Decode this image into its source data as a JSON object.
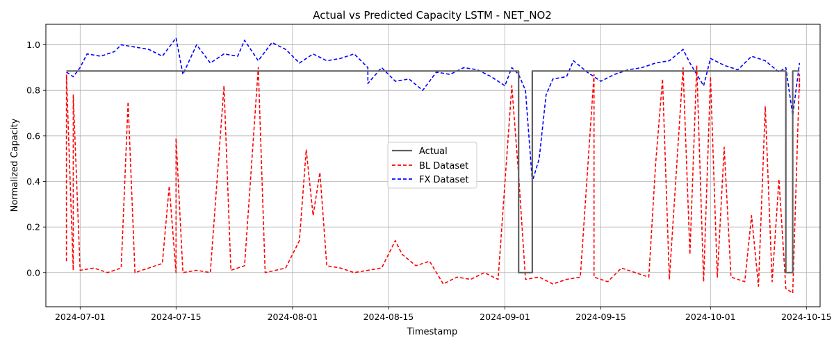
{
  "chart_data": {
    "type": "line",
    "title": "Actual vs Predicted Capacity LSTM - NET_NO2",
    "xlabel": "Timestamp",
    "ylabel": "Normalized Capacity",
    "xlim": [
      "2024-06-26",
      "2024-10-17"
    ],
    "ylim": [
      -0.15,
      1.09
    ],
    "x_ticks": [
      "2024-07-01",
      "2024-07-15",
      "2024-08-01",
      "2024-08-15",
      "2024-09-01",
      "2024-09-15",
      "2024-10-01",
      "2024-10-15"
    ],
    "y_ticks": [
      "0.0",
      "0.2",
      "0.4",
      "0.6",
      "0.8",
      "1.0"
    ],
    "grid": true,
    "legend_position": "center",
    "series": [
      {
        "name": "Actual",
        "color": "#606060",
        "style": "solid",
        "points": [
          [
            "2024-06-29",
            0.885
          ],
          [
            "2024-09-03",
            0.885
          ],
          [
            "2024-09-03",
            0.0
          ],
          [
            "2024-09-05",
            0.0
          ],
          [
            "2024-09-05",
            0.885
          ],
          [
            "2024-10-12",
            0.885
          ],
          [
            "2024-10-12",
            0.0
          ],
          [
            "2024-10-13",
            0.0
          ],
          [
            "2024-10-13",
            0.885
          ],
          [
            "2024-10-14",
            0.885
          ]
        ]
      },
      {
        "name": "BL Dataset",
        "color": "#ff0000",
        "style": "dashed",
        "points": [
          [
            "2024-06-29",
            0.05
          ],
          [
            "2024-06-29",
            0.87
          ],
          [
            "2024-06-30",
            0.01
          ],
          [
            "2024-06-30",
            0.78
          ],
          [
            "2024-07-01",
            0.01
          ],
          [
            "2024-07-03",
            0.02
          ],
          [
            "2024-07-05",
            0.0
          ],
          [
            "2024-07-07",
            0.02
          ],
          [
            "2024-07-08",
            0.75
          ],
          [
            "2024-07-09",
            0.0
          ],
          [
            "2024-07-11",
            0.02
          ],
          [
            "2024-07-13",
            0.04
          ],
          [
            "2024-07-14",
            0.38
          ],
          [
            "2024-07-15",
            0.0
          ],
          [
            "2024-07-15",
            0.59
          ],
          [
            "2024-07-16",
            0.0
          ],
          [
            "2024-07-18",
            0.01
          ],
          [
            "2024-07-20",
            0.0
          ],
          [
            "2024-07-22",
            0.82
          ],
          [
            "2024-07-23",
            0.01
          ],
          [
            "2024-07-25",
            0.03
          ],
          [
            "2024-07-27",
            0.9
          ],
          [
            "2024-07-28",
            0.0
          ],
          [
            "2024-07-31",
            0.02
          ],
          [
            "2024-08-02",
            0.14
          ],
          [
            "2024-08-03",
            0.54
          ],
          [
            "2024-08-04",
            0.25
          ],
          [
            "2024-08-05",
            0.44
          ],
          [
            "2024-08-06",
            0.03
          ],
          [
            "2024-08-08",
            0.02
          ],
          [
            "2024-08-10",
            0.0
          ],
          [
            "2024-08-12",
            0.01
          ],
          [
            "2024-08-14",
            0.02
          ],
          [
            "2024-08-16",
            0.14
          ],
          [
            "2024-08-17",
            0.08
          ],
          [
            "2024-08-19",
            0.03
          ],
          [
            "2024-08-21",
            0.05
          ],
          [
            "2024-08-23",
            -0.05
          ],
          [
            "2024-08-25",
            -0.02
          ],
          [
            "2024-08-27",
            -0.03
          ],
          [
            "2024-08-29",
            0.0
          ],
          [
            "2024-08-31",
            -0.03
          ],
          [
            "2024-09-02",
            0.82
          ],
          [
            "2024-09-03",
            0.43
          ],
          [
            "2024-09-04",
            -0.03
          ],
          [
            "2024-09-06",
            -0.02
          ],
          [
            "2024-09-08",
            -0.05
          ],
          [
            "2024-09-10",
            -0.03
          ],
          [
            "2024-09-12",
            -0.02
          ],
          [
            "2024-09-14",
            0.87
          ],
          [
            "2024-09-14",
            -0.02
          ],
          [
            "2024-09-16",
            -0.04
          ],
          [
            "2024-09-18",
            0.02
          ],
          [
            "2024-09-20",
            0.0
          ],
          [
            "2024-09-22",
            -0.02
          ],
          [
            "2024-09-23",
            0.48
          ],
          [
            "2024-09-24",
            0.85
          ],
          [
            "2024-09-25",
            -0.03
          ],
          [
            "2024-09-27",
            0.9
          ],
          [
            "2024-09-28",
            0.08
          ],
          [
            "2024-09-29",
            0.91
          ],
          [
            "2024-09-30",
            -0.04
          ],
          [
            "2024-10-01",
            0.86
          ],
          [
            "2024-10-02",
            -0.02
          ],
          [
            "2024-10-03",
            0.55
          ],
          [
            "2024-10-04",
            -0.02
          ],
          [
            "2024-10-06",
            -0.04
          ],
          [
            "2024-10-07",
            0.25
          ],
          [
            "2024-10-08",
            -0.06
          ],
          [
            "2024-10-09",
            0.73
          ],
          [
            "2024-10-10",
            -0.04
          ],
          [
            "2024-10-11",
            0.41
          ],
          [
            "2024-10-12",
            -0.07
          ],
          [
            "2024-10-13",
            -0.09
          ],
          [
            "2024-10-14",
            0.87
          ],
          [
            "2024-10-14",
            0.8
          ]
        ]
      },
      {
        "name": "FX Dataset",
        "color": "#0000ff",
        "style": "dashed",
        "points": [
          [
            "2024-06-29",
            0.88
          ],
          [
            "2024-06-30",
            0.86
          ],
          [
            "2024-07-01",
            0.9
          ],
          [
            "2024-07-02",
            0.96
          ],
          [
            "2024-07-04",
            0.95
          ],
          [
            "2024-07-06",
            0.97
          ],
          [
            "2024-07-07",
            1.0
          ],
          [
            "2024-07-09",
            0.99
          ],
          [
            "2024-07-11",
            0.98
          ],
          [
            "2024-07-13",
            0.95
          ],
          [
            "2024-07-15",
            1.03
          ],
          [
            "2024-07-16",
            0.87
          ],
          [
            "2024-07-18",
            1.0
          ],
          [
            "2024-07-20",
            0.92
          ],
          [
            "2024-07-22",
            0.96
          ],
          [
            "2024-07-24",
            0.95
          ],
          [
            "2024-07-25",
            1.02
          ],
          [
            "2024-07-27",
            0.93
          ],
          [
            "2024-07-29",
            1.01
          ],
          [
            "2024-07-31",
            0.98
          ],
          [
            "2024-08-02",
            0.92
          ],
          [
            "2024-08-04",
            0.96
          ],
          [
            "2024-08-06",
            0.93
          ],
          [
            "2024-08-08",
            0.94
          ],
          [
            "2024-08-10",
            0.96
          ],
          [
            "2024-08-12",
            0.9
          ],
          [
            "2024-08-12",
            0.83
          ],
          [
            "2024-08-14",
            0.9
          ],
          [
            "2024-08-16",
            0.84
          ],
          [
            "2024-08-18",
            0.85
          ],
          [
            "2024-08-20",
            0.8
          ],
          [
            "2024-08-22",
            0.88
          ],
          [
            "2024-08-24",
            0.87
          ],
          [
            "2024-08-26",
            0.9
          ],
          [
            "2024-08-28",
            0.89
          ],
          [
            "2024-08-30",
            0.86
          ],
          [
            "2024-09-01",
            0.82
          ],
          [
            "2024-09-02",
            0.9
          ],
          [
            "2024-09-03",
            0.87
          ],
          [
            "2024-09-04",
            0.8
          ],
          [
            "2024-09-05",
            0.4
          ],
          [
            "2024-09-06",
            0.5
          ],
          [
            "2024-09-07",
            0.78
          ],
          [
            "2024-09-08",
            0.85
          ],
          [
            "2024-09-10",
            0.86
          ],
          [
            "2024-09-11",
            0.93
          ],
          [
            "2024-09-13",
            0.88
          ],
          [
            "2024-09-15",
            0.84
          ],
          [
            "2024-09-17",
            0.87
          ],
          [
            "2024-09-19",
            0.89
          ],
          [
            "2024-09-21",
            0.9
          ],
          [
            "2024-09-23",
            0.92
          ],
          [
            "2024-09-25",
            0.93
          ],
          [
            "2024-09-27",
            0.98
          ],
          [
            "2024-09-28",
            0.92
          ],
          [
            "2024-09-30",
            0.82
          ],
          [
            "2024-10-01",
            0.94
          ],
          [
            "2024-10-03",
            0.91
          ],
          [
            "2024-10-05",
            0.89
          ],
          [
            "2024-10-07",
            0.95
          ],
          [
            "2024-10-09",
            0.93
          ],
          [
            "2024-10-11",
            0.88
          ],
          [
            "2024-10-12",
            0.9
          ],
          [
            "2024-10-13",
            0.69
          ],
          [
            "2024-10-14",
            0.92
          ]
        ]
      }
    ]
  }
}
